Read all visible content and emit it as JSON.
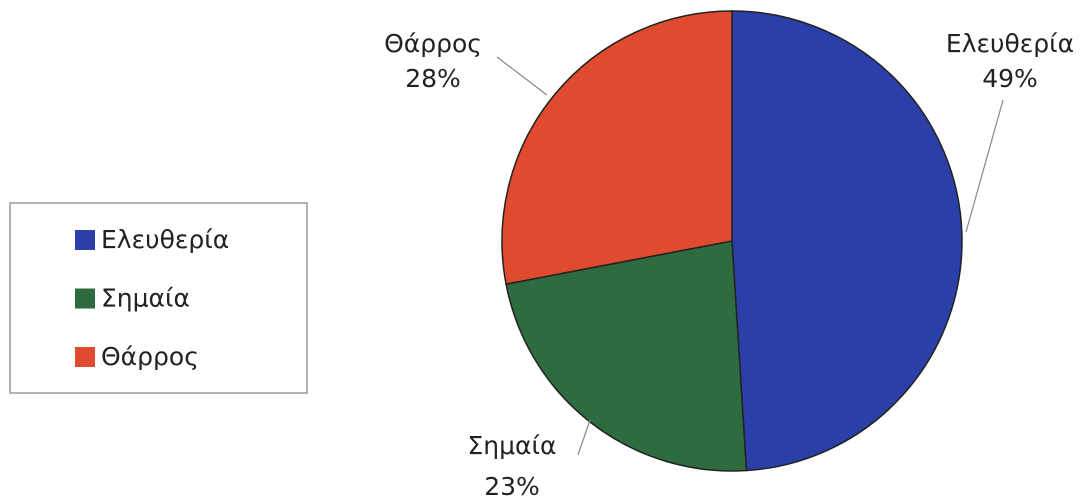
{
  "chart_data": {
    "type": "pie",
    "categories": [
      "Ελευθερία",
      "Σημαία",
      "Θάρρος"
    ],
    "values": [
      49,
      23,
      28
    ],
    "value_labels": [
      "49%",
      "23%",
      "28%"
    ],
    "colors": [
      "#2b3fa8",
      "#2e6b3f",
      "#e04a2f"
    ],
    "legend": "left"
  }
}
